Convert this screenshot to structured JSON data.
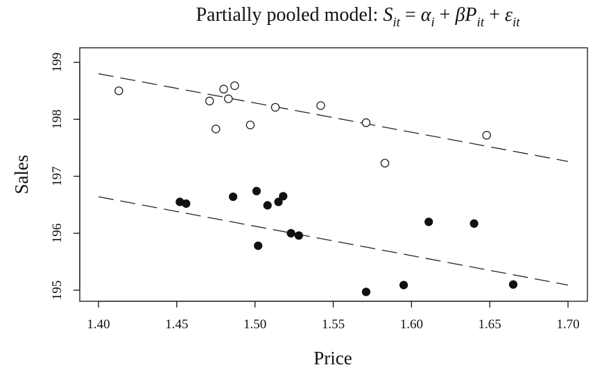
{
  "chart_data": {
    "type": "scatter",
    "title": {
      "prefix": "Partially pooled model: ",
      "equation": "S",
      "parts": [
        {
          "t": "S",
          "i": true
        },
        {
          "t": "it",
          "i": true,
          "sub": true
        },
        {
          "t": " = ",
          "i": false
        },
        {
          "t": "α",
          "i": true
        },
        {
          "t": "i",
          "i": true,
          "sub": true
        },
        {
          "t": " + ",
          "i": false
        },
        {
          "t": "βP",
          "i": true
        },
        {
          "t": "it",
          "i": true,
          "sub": true
        },
        {
          "t": " + ",
          "i": false
        },
        {
          "t": "ε",
          "i": true
        },
        {
          "t": "it",
          "i": true,
          "sub": true
        }
      ]
    },
    "xlabel": "Price",
    "ylabel": "Sales",
    "xlim": [
      1.4,
      1.7
    ],
    "ylim": [
      195,
      199
    ],
    "x_ticks": [
      "1.40",
      "1.45",
      "1.50",
      "1.55",
      "1.60",
      "1.65",
      "1.70"
    ],
    "y_ticks": [
      "195",
      "196",
      "197",
      "198",
      "199"
    ],
    "grid": false,
    "series": [
      {
        "marker": "open",
        "points": [
          [
            1.413,
            198.5
          ],
          [
            1.471,
            198.32
          ],
          [
            1.475,
            197.83
          ],
          [
            1.48,
            198.53
          ],
          [
            1.483,
            198.36
          ],
          [
            1.487,
            198.59
          ],
          [
            1.497,
            197.9
          ],
          [
            1.513,
            198.21
          ],
          [
            1.542,
            198.24
          ],
          [
            1.571,
            197.94
          ],
          [
            1.583,
            197.23
          ],
          [
            1.648,
            197.72
          ]
        ],
        "fit": [
          [
            1.4,
            198.8
          ],
          [
            1.7,
            197.26
          ]
        ]
      },
      {
        "marker": "filled",
        "points": [
          [
            1.452,
            196.55
          ],
          [
            1.456,
            196.52
          ],
          [
            1.486,
            196.64
          ],
          [
            1.501,
            196.74
          ],
          [
            1.502,
            195.78
          ],
          [
            1.508,
            196.49
          ],
          [
            1.515,
            196.55
          ],
          [
            1.518,
            196.65
          ],
          [
            1.523,
            196.0
          ],
          [
            1.528,
            195.96
          ],
          [
            1.571,
            194.97
          ],
          [
            1.595,
            195.09
          ],
          [
            1.611,
            196.2
          ],
          [
            1.64,
            196.17
          ],
          [
            1.665,
            195.1
          ]
        ],
        "fit": [
          [
            1.4,
            196.64
          ],
          [
            1.7,
            195.09
          ]
        ]
      }
    ]
  }
}
